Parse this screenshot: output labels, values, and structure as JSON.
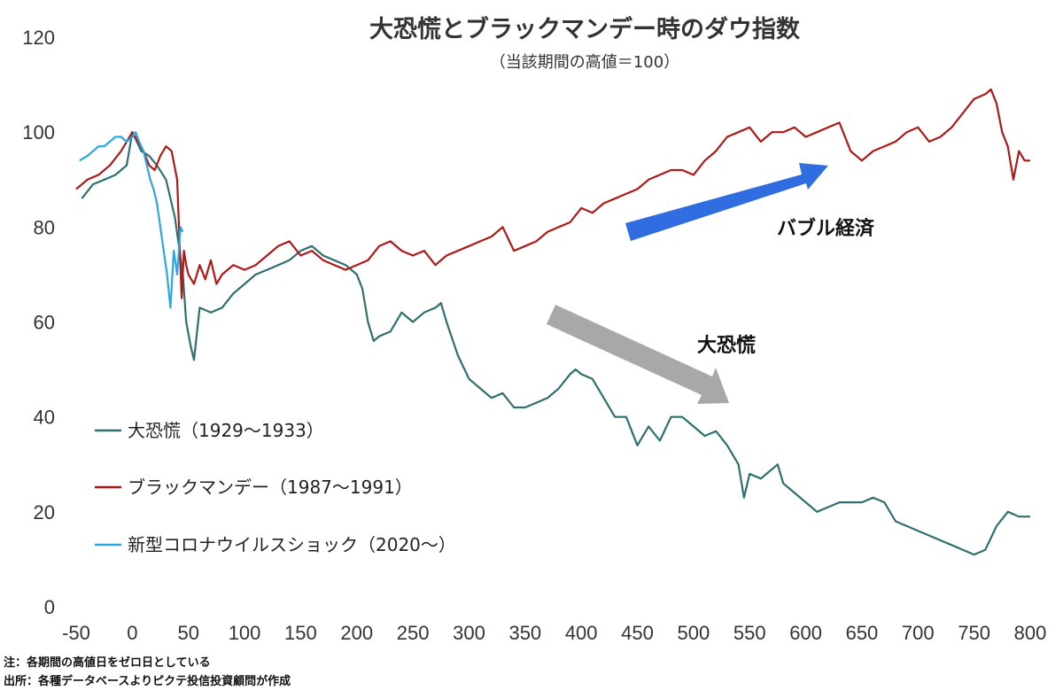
{
  "chart_data": {
    "type": "line",
    "title": "大恐慌とブラックマンデー時のダウ指数",
    "subtitle": "（当該期間の高値＝100）",
    "xlim": [
      -50,
      800
    ],
    "ylim": [
      0,
      120
    ],
    "xticks": [
      -50,
      0,
      50,
      100,
      150,
      200,
      250,
      300,
      350,
      400,
      450,
      500,
      550,
      600,
      650,
      700,
      750,
      800
    ],
    "yticks": [
      0,
      20,
      40,
      60,
      80,
      100,
      120
    ],
    "grid": false,
    "legend_position": "left",
    "series": [
      {
        "name": "大恐慌（1929～1933）",
        "color": "#2e7070",
        "x": [
          -45,
          -35,
          -25,
          -15,
          -5,
          0,
          8,
          15,
          22,
          30,
          38,
          45,
          48,
          52,
          55,
          60,
          70,
          80,
          90,
          100,
          110,
          120,
          130,
          140,
          150,
          160,
          170,
          180,
          190,
          200,
          205,
          210,
          215,
          220,
          230,
          240,
          250,
          260,
          270,
          275,
          280,
          290,
          300,
          310,
          320,
          330,
          340,
          350,
          360,
          370,
          380,
          390,
          395,
          400,
          410,
          420,
          430,
          440,
          450,
          460,
          470,
          480,
          490,
          500,
          510,
          520,
          530,
          540,
          545,
          550,
          560,
          570,
          575,
          580,
          590,
          600,
          610,
          620,
          630,
          640,
          650,
          660,
          670,
          680,
          690,
          700,
          710,
          720,
          730,
          740,
          750,
          760,
          770,
          780,
          790,
          800
        ],
        "values": [
          86,
          89,
          90,
          91,
          93,
          100,
          96,
          95,
          93,
          90,
          82,
          70,
          60,
          55,
          52,
          63,
          62,
          63,
          66,
          68,
          70,
          71,
          72,
          73,
          75,
          76,
          74,
          73,
          72,
          70,
          67,
          60,
          56,
          57,
          58,
          62,
          60,
          62,
          63,
          64,
          60,
          53,
          48,
          46,
          44,
          45,
          42,
          42,
          43,
          44,
          46,
          49,
          50,
          49,
          48,
          44,
          40,
          40,
          34,
          38,
          35,
          40,
          40,
          38,
          36,
          37,
          34,
          30,
          23,
          28,
          27,
          29,
          30,
          26,
          24,
          22,
          20,
          21,
          22,
          22,
          22,
          23,
          22,
          18,
          17,
          16,
          15,
          14,
          13,
          12,
          11,
          12,
          17,
          20,
          19,
          19
        ]
      },
      {
        "name": "ブラックマンデー（1987～1991）",
        "color": "#b01818",
        "x": [
          -50,
          -40,
          -30,
          -20,
          -10,
          0,
          5,
          10,
          15,
          20,
          25,
          30,
          35,
          40,
          44,
          46,
          48,
          50,
          55,
          60,
          65,
          70,
          75,
          80,
          90,
          100,
          110,
          120,
          130,
          140,
          150,
          160,
          170,
          180,
          190,
          200,
          210,
          220,
          230,
          240,
          250,
          260,
          270,
          280,
          290,
          300,
          310,
          320,
          330,
          340,
          350,
          360,
          370,
          380,
          390,
          400,
          410,
          420,
          430,
          440,
          450,
          460,
          470,
          480,
          490,
          500,
          510,
          520,
          530,
          540,
          550,
          560,
          570,
          580,
          590,
          600,
          610,
          620,
          630,
          640,
          650,
          660,
          670,
          680,
          690,
          700,
          710,
          720,
          730,
          740,
          750,
          760,
          765,
          770,
          775,
          780,
          785,
          790,
          795,
          800
        ],
        "values": [
          88,
          90,
          91,
          93,
          96,
          100,
          98,
          96,
          93,
          92,
          95,
          97,
          96,
          90,
          65,
          75,
          72,
          70,
          68,
          72,
          69,
          73,
          68,
          70,
          72,
          71,
          72,
          74,
          76,
          77,
          74,
          75,
          73,
          72,
          71,
          72,
          73,
          76,
          77,
          75,
          74,
          75,
          72,
          74,
          75,
          76,
          77,
          78,
          80,
          75,
          76,
          77,
          79,
          80,
          81,
          84,
          83,
          85,
          86,
          87,
          88,
          90,
          91,
          92,
          92,
          91,
          94,
          96,
          99,
          100,
          101,
          98,
          100,
          100,
          101,
          99,
          100,
          101,
          102,
          96,
          94,
          96,
          97,
          98,
          100,
          101,
          98,
          99,
          101,
          104,
          107,
          108,
          109,
          106,
          100,
          97,
          90,
          96,
          94,
          94
        ]
      },
      {
        "name": "新型コロナウイルスショック（2020～）",
        "color": "#2aa7e2",
        "x": [
          -47,
          -40,
          -35,
          -30,
          -25,
          -20,
          -15,
          -10,
          -5,
          0,
          3,
          6,
          10,
          13,
          16,
          19,
          22,
          25,
          28,
          31,
          34,
          37,
          40,
          43,
          45
        ],
        "values": [
          94,
          95,
          96,
          97,
          97,
          98,
          99,
          99,
          98,
          99,
          100,
          98,
          96,
          93,
          90,
          88,
          85,
          80,
          75,
          70,
          63,
          75,
          70,
          80,
          79
        ]
      }
    ],
    "annotations": [
      "バブル経済",
      "大恐慌"
    ]
  },
  "notes": [
    "注：各期間の高値日をゼロ日としている",
    "出所：各種データベースよりピクテ投信投資顧問が作成"
  ]
}
